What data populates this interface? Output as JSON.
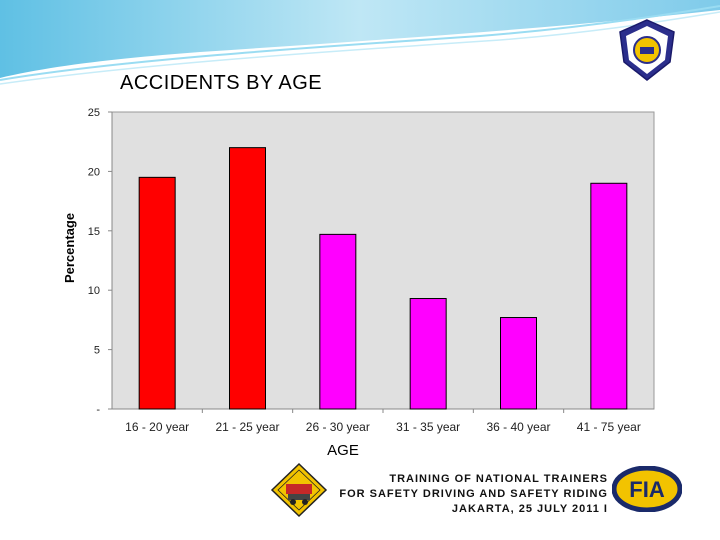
{
  "title": "ACCIDENTS  BY AGE",
  "colors": {
    "red": "#FF0000",
    "magenta": "#FF00FF",
    "plot_bg": "#E0E0E0",
    "banner": "#8FD3EC"
  },
  "chart_data": {
    "type": "bar",
    "title": "ACCIDENTS  BY AGE",
    "xlabel": "AGE",
    "ylabel": "Percentage",
    "ylim": [
      0,
      25
    ],
    "yticks": [
      "-",
      "5",
      "10",
      "15",
      "20",
      "25"
    ],
    "grid": false,
    "legend": "none",
    "categories": [
      "16 - 20  year",
      "21 - 25 year",
      "26 - 30 year",
      "31 - 35 year",
      "36 - 40  year",
      "41 - 75  year"
    ],
    "values": [
      19.5,
      22.0,
      14.7,
      9.3,
      7.7,
      19.0
    ],
    "bar_colors": [
      "#FF0000",
      "#FF0000",
      "#FF00FF",
      "#FF00FF",
      "#FF00FF",
      "#FF00FF"
    ]
  },
  "footer": {
    "line1": "TRAINING OF  NATIONAL TRAINERS",
    "line2": "FOR  SAFETY DRIVING AND SAFETY RIDING",
    "line3": "JAKARTA, 25 JULY 2011 I",
    "right_logo_text": "FIA"
  }
}
